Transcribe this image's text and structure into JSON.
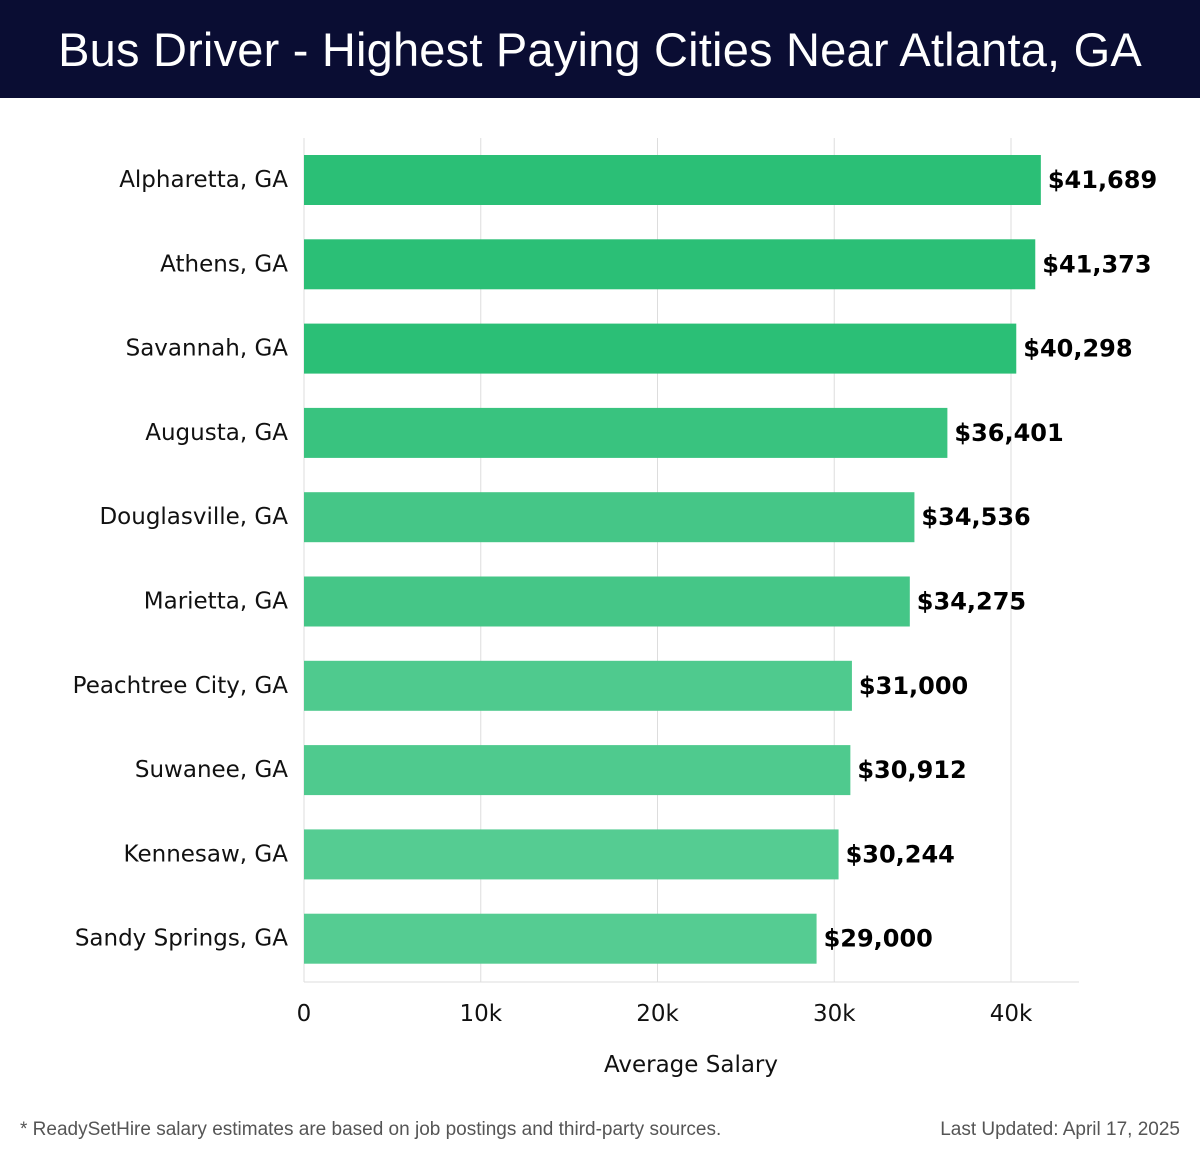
{
  "header": {
    "title": "Bus Driver - Highest Paying Cities Near Atlanta, GA"
  },
  "chart_data": {
    "type": "bar",
    "orientation": "horizontal",
    "categories": [
      "Alpharetta, GA",
      "Athens, GA",
      "Savannah, GA",
      "Augusta, GA",
      "Douglasville, GA",
      "Marietta, GA",
      "Peachtree City, GA",
      "Suwanee, GA",
      "Kennesaw, GA",
      "Sandy Springs, GA"
    ],
    "values": [
      41689,
      41373,
      40298,
      36401,
      34536,
      34275,
      31000,
      30912,
      30244,
      29000
    ],
    "value_labels": [
      "$41,689",
      "$41,373",
      "$40,298",
      "$36,401",
      "$34,536",
      "$34,275",
      "$31,000",
      "$30,912",
      "$30,244",
      "$29,000"
    ],
    "xlabel": "Average Salary",
    "ylabel": "",
    "xlim": [
      0,
      44000
    ],
    "xticks": [
      0,
      10000,
      20000,
      30000,
      40000
    ],
    "xtick_labels": [
      "0",
      "10k",
      "20k",
      "30k",
      "40k"
    ],
    "grid": "vertical",
    "bar_colors": [
      "#2bbf76",
      "#2bbf76",
      "#2bbf76",
      "#39c37f",
      "#45c687",
      "#45c687",
      "#4fca8e",
      "#4fca8e",
      "#55cc92",
      "#55cc92"
    ]
  },
  "footer": {
    "note": "* ReadySetHire salary estimates are based on job postings and third-party sources.",
    "updated": "Last Updated: April 17, 2025"
  }
}
